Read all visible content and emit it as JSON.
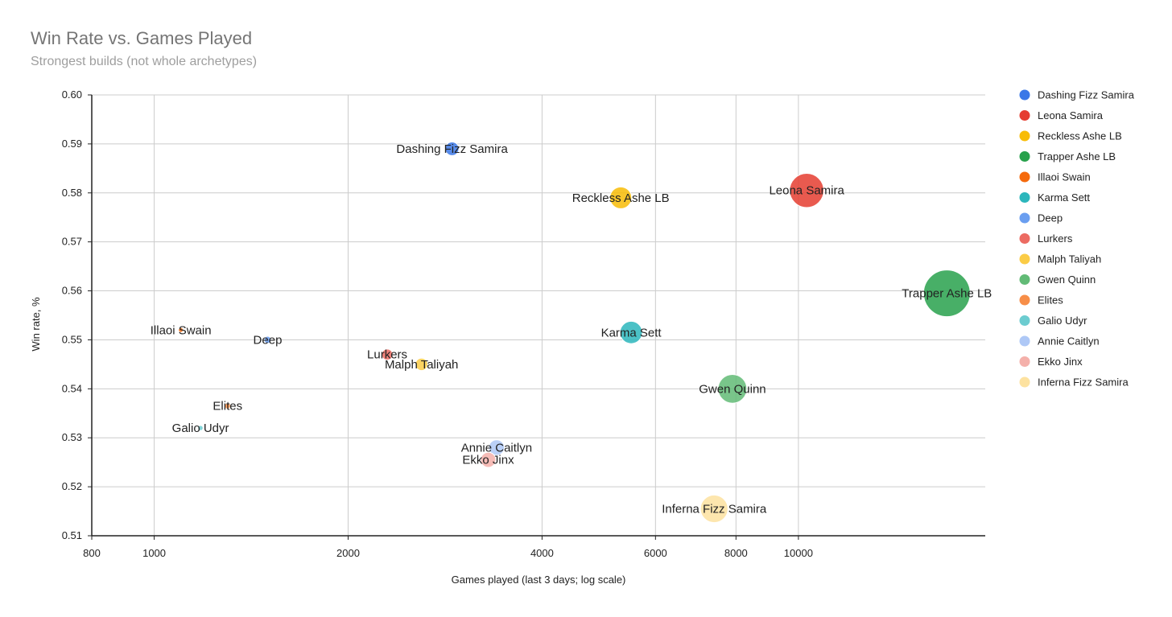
{
  "chart_data": {
    "type": "scatter",
    "title": "Win Rate vs. Games Played",
    "subtitle": "Strongest builds (not whole archetypes)",
    "xlabel": "Games played (last 3 days; log scale)",
    "ylabel": "Win rate, %",
    "x_scale": "log",
    "xlim": [
      800,
      19500
    ],
    "ylim": [
      0.51,
      0.6
    ],
    "x_ticks": [
      800,
      1000,
      2000,
      4000,
      6000,
      8000,
      10000
    ],
    "y_ticks": [
      "0.51",
      "0.52",
      "0.53",
      "0.54",
      "0.55",
      "0.56",
      "0.57",
      "0.58",
      "0.59",
      "0.60"
    ],
    "grid": true,
    "legend_position": "right",
    "series": [
      {
        "name": "Dashing Fizz Samira",
        "x": 2900,
        "y": 0.589,
        "color": "#3b78e7"
      },
      {
        "name": "Leona Samira",
        "x": 10300,
        "y": 0.5805,
        "color": "#e53d30"
      },
      {
        "name": "Reckless Ashe LB",
        "x": 5300,
        "y": 0.579,
        "color": "#f8bc06"
      },
      {
        "name": "Trapper Ashe LB",
        "x": 17000,
        "y": 0.5595,
        "color": "#28a14c"
      },
      {
        "name": "Illaoi Swain",
        "x": 1100,
        "y": 0.552,
        "color": "#f56a0d"
      },
      {
        "name": "Karma Sett",
        "x": 5500,
        "y": 0.5515,
        "color": "#2cb6bc"
      },
      {
        "name": "Deep",
        "x": 1500,
        "y": 0.55,
        "color": "#6a9ef0"
      },
      {
        "name": "Lurkers",
        "x": 2300,
        "y": 0.547,
        "color": "#ec6b62"
      },
      {
        "name": "Malph Taliyah",
        "x": 2600,
        "y": 0.545,
        "color": "#fbcc46"
      },
      {
        "name": "Gwen Quinn",
        "x": 7900,
        "y": 0.54,
        "color": "#62bb76"
      },
      {
        "name": "Elites",
        "x": 1300,
        "y": 0.5365,
        "color": "#f78e48"
      },
      {
        "name": "Galio Udyr",
        "x": 1180,
        "y": 0.532,
        "color": "#6cccd0"
      },
      {
        "name": "Annie Caitlyn",
        "x": 3400,
        "y": 0.528,
        "color": "#aec8f6"
      },
      {
        "name": "Ekko Jinx",
        "x": 3300,
        "y": 0.5255,
        "color": "#f4b0aa"
      },
      {
        "name": "Inferna Fizz Samira",
        "x": 7400,
        "y": 0.5155,
        "color": "#fde2a0"
      }
    ]
  }
}
